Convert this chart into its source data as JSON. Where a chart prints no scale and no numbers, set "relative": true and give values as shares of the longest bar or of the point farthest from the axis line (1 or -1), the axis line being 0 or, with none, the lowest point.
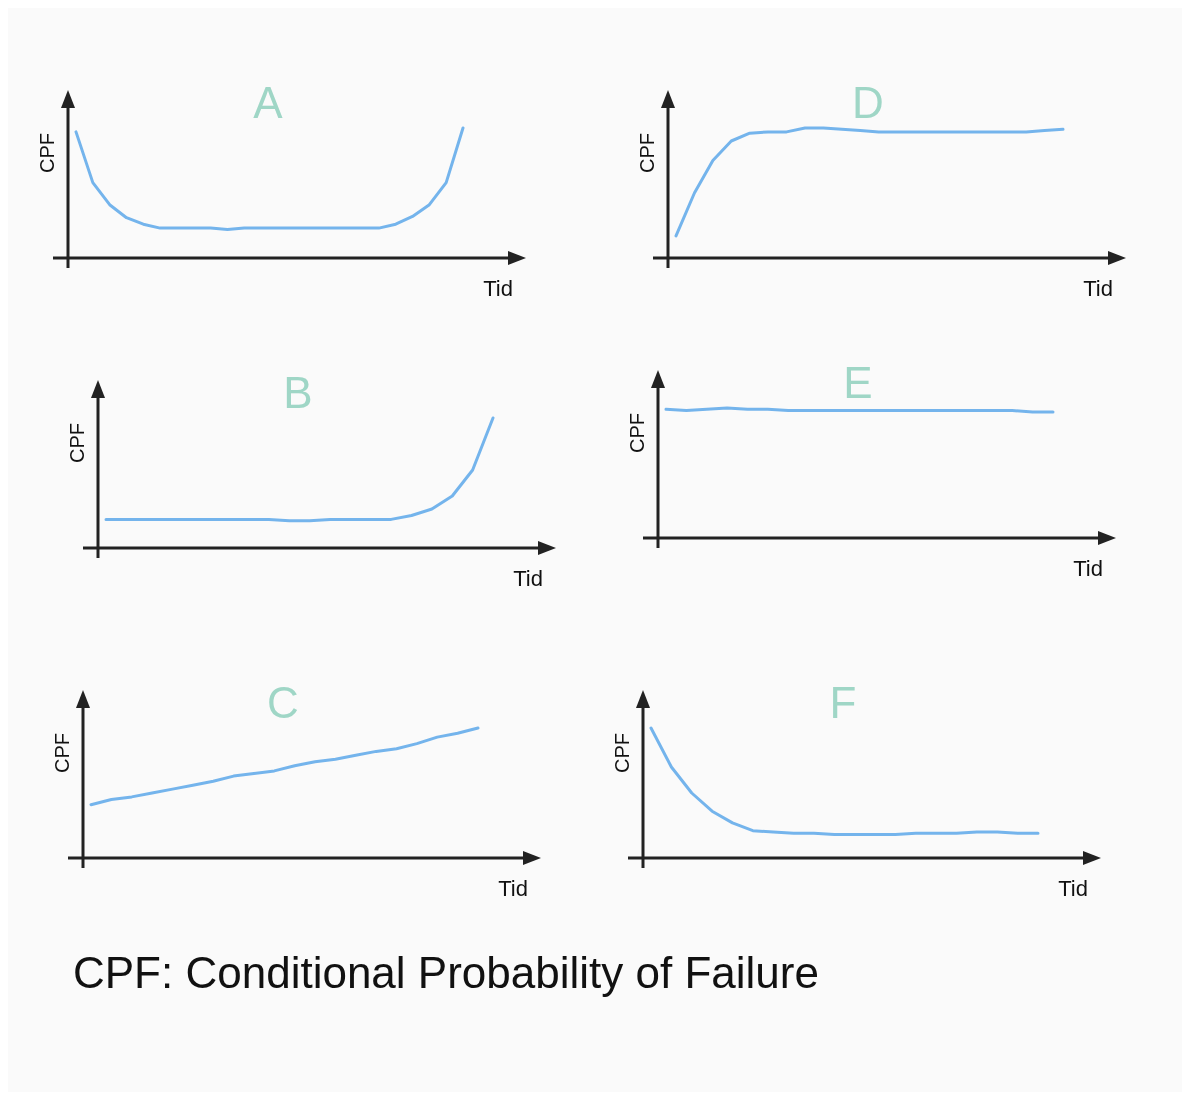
{
  "chart_data": [
    {
      "type": "line",
      "title": "A",
      "xlabel": "Tid",
      "ylabel": "CPF",
      "relative": true,
      "categories": [
        null,
        null,
        null,
        null,
        null,
        null,
        null,
        null,
        null,
        null,
        null,
        null,
        null,
        null,
        null,
        null,
        null,
        null,
        null,
        null,
        null,
        null,
        null,
        null
      ],
      "series": [
        {
          "color": "#74b4ec",
          "values": [
            0.97,
            0.58,
            0.41,
            0.31,
            0.26,
            0.23,
            0.23,
            0.23,
            0.23,
            0.22,
            0.23,
            0.23,
            0.23,
            0.23,
            0.23,
            0.23,
            0.23,
            0.23,
            0.23,
            0.26,
            0.32,
            0.41,
            0.58,
            1
          ]
        }
      ]
    },
    {
      "type": "line",
      "title": "D",
      "xlabel": "Tid",
      "ylabel": "CPF",
      "relative": true,
      "categories": [
        null,
        null,
        null,
        null,
        null,
        null,
        null,
        null,
        null,
        null,
        null,
        null,
        null,
        null,
        null,
        null,
        null,
        null,
        null,
        null,
        null,
        null
      ],
      "series": [
        {
          "color": "#74b4ec",
          "values": [
            0.17,
            0.5,
            0.75,
            0.9,
            0.96,
            0.97,
            0.97,
            1,
            1,
            0.99,
            0.98,
            0.97,
            0.97,
            0.97,
            0.97,
            0.97,
            0.97,
            0.97,
            0.97,
            0.97,
            0.98,
            0.99
          ]
        }
      ]
    },
    {
      "type": "line",
      "title": "B",
      "xlabel": "Tid",
      "ylabel": "CPF",
      "relative": true,
      "categories": [
        null,
        null,
        null,
        null,
        null,
        null,
        null,
        null,
        null,
        null,
        null,
        null,
        null,
        null,
        null,
        null,
        null,
        null,
        null,
        null
      ],
      "series": [
        {
          "color": "#74b4ec",
          "values": [
            0.22,
            0.22,
            0.22,
            0.22,
            0.22,
            0.22,
            0.22,
            0.22,
            0.22,
            0.21,
            0.21,
            0.22,
            0.22,
            0.22,
            0.22,
            0.25,
            0.3,
            0.4,
            0.6,
            1
          ]
        }
      ]
    },
    {
      "type": "line",
      "title": "E",
      "xlabel": "Tid",
      "ylabel": "CPF",
      "relative": true,
      "categories": [
        null,
        null,
        null,
        null,
        null,
        null,
        null,
        null,
        null,
        null,
        null,
        null,
        null,
        null,
        null,
        null,
        null,
        null,
        null,
        null
      ],
      "series": [
        {
          "color": "#74b4ec",
          "values": [
            0.99,
            0.98,
            0.99,
            1,
            0.99,
            0.99,
            0.98,
            0.98,
            0.98,
            0.98,
            0.98,
            0.98,
            0.98,
            0.98,
            0.98,
            0.98,
            0.98,
            0.98,
            0.97,
            0.97
          ]
        }
      ]
    },
    {
      "type": "line",
      "title": "C",
      "xlabel": "Tid",
      "ylabel": "CPF",
      "relative": true,
      "categories": [
        null,
        null,
        null,
        null,
        null,
        null,
        null,
        null,
        null,
        null,
        null,
        null,
        null,
        null,
        null,
        null,
        null,
        null,
        null,
        null
      ],
      "series": [
        {
          "color": "#74b4ec",
          "values": [
            0.41,
            0.45,
            0.47,
            0.5,
            0.53,
            0.56,
            0.59,
            0.63,
            0.65,
            0.67,
            0.71,
            0.74,
            0.76,
            0.79,
            0.82,
            0.84,
            0.88,
            0.93,
            0.96,
            1
          ]
        }
      ]
    },
    {
      "type": "line",
      "title": "F",
      "xlabel": "Tid",
      "ylabel": "CPF",
      "relative": true,
      "annotations": [
        "CPF: Conditional Probability of Failure"
      ],
      "categories": [
        null,
        null,
        null,
        null,
        null,
        null,
        null,
        null,
        null,
        null,
        null,
        null,
        null,
        null,
        null,
        null,
        null,
        null,
        null,
        null
      ],
      "series": [
        {
          "color": "#74b4ec",
          "values": [
            1,
            0.7,
            0.5,
            0.36,
            0.27,
            0.21,
            0.2,
            0.19,
            0.19,
            0.18,
            0.18,
            0.18,
            0.18,
            0.19,
            0.19,
            0.19,
            0.2,
            0.2,
            0.19,
            0.19
          ]
        }
      ]
    }
  ]
}
